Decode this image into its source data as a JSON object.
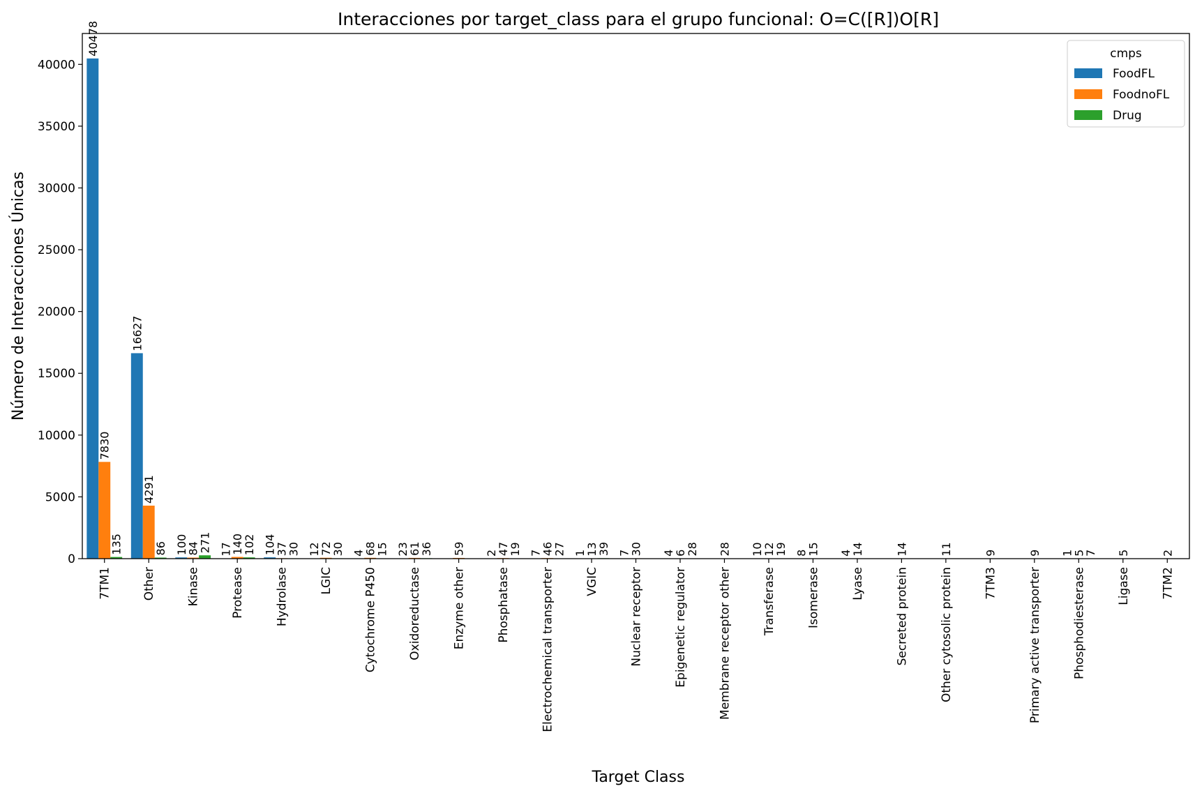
{
  "chart_data": {
    "type": "bar",
    "title": "Interacciones por target_class para el grupo funcional: O=C([R])O[R]",
    "xlabel": "Target Class",
    "ylabel": "Número de Interacciones Únicas",
    "ylim": [
      0,
      42500
    ],
    "yticks": [
      0,
      5000,
      10000,
      15000,
      20000,
      25000,
      30000,
      35000,
      40000
    ],
    "grid": false,
    "legend": {
      "title": "cmps",
      "placement": "top-right"
    },
    "categories": [
      "7TM1",
      "Other",
      "Kinase",
      "Protease",
      "Hydrolase",
      "LGIC",
      "Cytochrome P450",
      "Oxidoreductase",
      "Enzyme other",
      "Phosphatase",
      "Electrochemical transporter",
      "VGIC",
      "Nuclear receptor",
      "Epigenetic regulator",
      "Membrane receptor other",
      "Transferase",
      "Isomerase",
      "Lyase",
      "Secreted protein",
      "Other cytosolic protein",
      "7TM3",
      "Primary active transporter",
      "Phosphodiesterase",
      "Ligase",
      "7TM2"
    ],
    "series": [
      {
        "name": "FoodFL",
        "color": "#1f77b4",
        "values": [
          40478,
          16627,
          100,
          17,
          104,
          12,
          4,
          23,
          null,
          2,
          7,
          1,
          7,
          4,
          null,
          10,
          8,
          4,
          null,
          null,
          null,
          null,
          1,
          null,
          null
        ]
      },
      {
        "name": "FoodnoFL",
        "color": "#ff7f0e",
        "values": [
          7830,
          4291,
          84,
          140,
          37,
          72,
          68,
          61,
          59,
          47,
          46,
          13,
          30,
          6,
          28,
          12,
          15,
          14,
          14,
          11,
          9,
          9,
          5,
          5,
          2
        ]
      },
      {
        "name": "Drug",
        "color": "#2ca02c",
        "values": [
          135,
          86,
          271,
          102,
          30,
          30,
          15,
          36,
          null,
          19,
          27,
          39,
          null,
          28,
          null,
          19,
          null,
          null,
          null,
          null,
          null,
          null,
          7,
          null,
          null
        ]
      }
    ]
  }
}
